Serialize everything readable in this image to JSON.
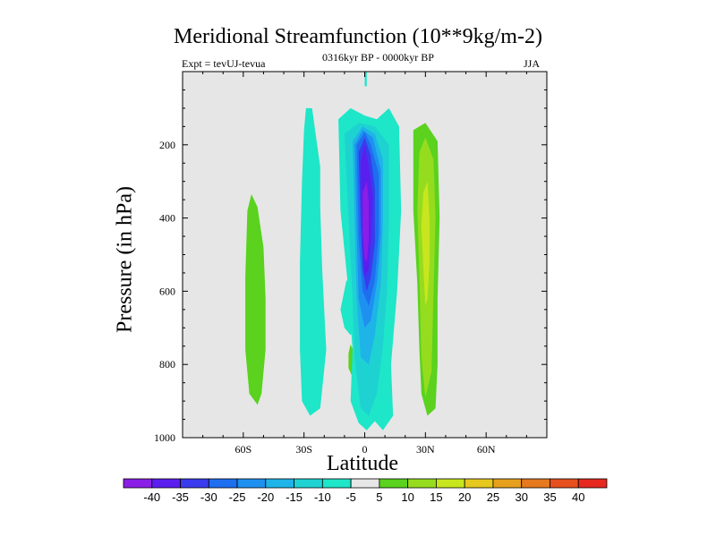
{
  "chart_data": {
    "type": "contour",
    "title": "Meridional Streamfunction (10**9kg/m-2)",
    "subtitle_left": "Expt = tevUJ-tevua",
    "subtitle_center": "0316kyr BP - 0000kyr BP",
    "subtitle_right": "JJA",
    "xlabel": "Latitude",
    "ylabel": "Pressure (in hPa)",
    "xlim": [
      -90,
      90
    ],
    "ylim": [
      1000,
      0
    ],
    "x_ticks": [
      {
        "value": -60,
        "label": "60S"
      },
      {
        "value": -30,
        "label": "30S"
      },
      {
        "value": 0,
        "label": "0"
      },
      {
        "value": 30,
        "label": "30N"
      },
      {
        "value": 60,
        "label": "60N"
      }
    ],
    "y_ticks": [
      {
        "value": 200,
        "label": "200"
      },
      {
        "value": 400,
        "label": "400"
      },
      {
        "value": 600,
        "label": "600"
      },
      {
        "value": 800,
        "label": "800"
      },
      {
        "value": 1000,
        "label": "1000"
      }
    ],
    "background_color": "#e6e6e6",
    "colorbar": {
      "levels": [
        "-40",
        "-35",
        "-30",
        "-25",
        "-20",
        "-15",
        "-10",
        "-5",
        "5",
        "10",
        "15",
        "20",
        "25",
        "30",
        "35",
        "40"
      ],
      "colors": [
        "#8a1ee6",
        "#5a1eee",
        "#3a3aee",
        "#1e6ef0",
        "#1e90f0",
        "#1eb4e8",
        "#1ed2d2",
        "#1ee6c8",
        "#e6e6e6",
        "#5ad21e",
        "#96dc1e",
        "#c8e61e",
        "#e6c81e",
        "#e6a01e",
        "#e6781e",
        "#e6501e",
        "#e6281e"
      ]
    },
    "regions": [
      {
        "name": "green-cell-60S",
        "level": 5,
        "color": "#5ad21e",
        "points": [
          [
            -56,
            335
          ],
          [
            -53,
            370
          ],
          [
            -50,
            480
          ],
          [
            -49,
            620
          ],
          [
            -49,
            760
          ],
          [
            -51,
            880
          ],
          [
            -53,
            910
          ],
          [
            -57,
            880
          ],
          [
            -59,
            760
          ],
          [
            -59,
            560
          ],
          [
            -58,
            380
          ]
        ]
      },
      {
        "name": "teal-cell-30S",
        "level": -5,
        "color": "#1ee6c8",
        "points": [
          [
            -29,
            100
          ],
          [
            -26,
            100
          ],
          [
            -24,
            180
          ],
          [
            -22,
            260
          ],
          [
            -22,
            370
          ],
          [
            -21,
            540
          ],
          [
            -19,
            760
          ],
          [
            -22,
            920
          ],
          [
            -27,
            940
          ],
          [
            -31,
            900
          ],
          [
            -32,
            760
          ],
          [
            -32,
            520
          ],
          [
            -31,
            300
          ],
          [
            -30,
            160
          ]
        ]
      },
      {
        "name": "teal-tongue-10S",
        "level": -5,
        "color": "#1ee6c8",
        "points": [
          [
            -9,
            570
          ],
          [
            -7,
            580
          ],
          [
            -5,
            620
          ],
          [
            -4,
            700
          ],
          [
            -7,
            720
          ],
          [
            -10,
            700
          ],
          [
            -12,
            650
          ]
        ]
      },
      {
        "name": "green-blob-8S",
        "level": 5,
        "color": "#5ad21e",
        "points": [
          [
            -7,
            745
          ],
          [
            -5,
            770
          ],
          [
            -5,
            810
          ],
          [
            -6,
            835
          ],
          [
            -8,
            810
          ],
          [
            -8,
            770
          ]
        ]
      },
      {
        "name": "teal-top-0",
        "level": -5,
        "color": "#1ee6c8",
        "points": [
          [
            0,
            0
          ],
          [
            1,
            0
          ],
          [
            1,
            40
          ],
          [
            0,
            40
          ]
        ]
      },
      {
        "name": "teal-core",
        "level": -5,
        "color": "#1ee6c8",
        "points": [
          [
            -13,
            130
          ],
          [
            -7,
            100
          ],
          [
            0,
            120
          ],
          [
            6,
            130
          ],
          [
            12,
            100
          ],
          [
            17,
            150
          ],
          [
            18,
            380
          ],
          [
            16,
            600
          ],
          [
            13,
            800
          ],
          [
            14,
            940
          ],
          [
            9,
            980
          ],
          [
            5,
            955
          ],
          [
            1,
            980
          ],
          [
            -3,
            960
          ],
          [
            -7,
            900
          ],
          [
            -6,
            760
          ],
          [
            -8,
            600
          ],
          [
            -12,
            380
          ]
        ]
      },
      {
        "name": "cyan-core",
        "level": -10,
        "color": "#1ed2d2",
        "points": [
          [
            -10,
            170
          ],
          [
            -3,
            140
          ],
          [
            5,
            150
          ],
          [
            12,
            200
          ],
          [
            12,
            400
          ],
          [
            11,
            600
          ],
          [
            9,
            750
          ],
          [
            6,
            880
          ],
          [
            2,
            940
          ],
          [
            -2,
            920
          ],
          [
            -5,
            780
          ],
          [
            -6,
            620
          ],
          [
            -8,
            400
          ]
        ]
      },
      {
        "name": "sky-core",
        "level": -15,
        "color": "#1eb4e8",
        "points": [
          [
            -6,
            190
          ],
          [
            -1,
            150
          ],
          [
            5,
            170
          ],
          [
            9,
            240
          ],
          [
            9,
            420
          ],
          [
            8,
            580
          ],
          [
            5,
            720
          ],
          [
            2,
            800
          ],
          [
            -2,
            780
          ],
          [
            -4,
            620
          ],
          [
            -5,
            420
          ]
        ]
      },
      {
        "name": "blue1-core",
        "level": -20,
        "color": "#1e90f0",
        "points": [
          [
            -5,
            200
          ],
          [
            -1,
            160
          ],
          [
            4,
            180
          ],
          [
            8,
            270
          ],
          [
            8,
            450
          ],
          [
            6,
            580
          ],
          [
            3,
            680
          ],
          [
            0,
            700
          ],
          [
            -3,
            620
          ],
          [
            -4,
            430
          ]
        ]
      },
      {
        "name": "blue2-core",
        "level": -25,
        "color": "#1e6ef0",
        "points": [
          [
            -4,
            200
          ],
          [
            0,
            165
          ],
          [
            3,
            200
          ],
          [
            7,
            280
          ],
          [
            7,
            440
          ],
          [
            5,
            570
          ],
          [
            2,
            640
          ],
          [
            -1,
            600
          ],
          [
            -3,
            450
          ]
        ]
      },
      {
        "name": "blue3-core",
        "level": -30,
        "color": "#3a3aee",
        "points": [
          [
            -3,
            220
          ],
          [
            0,
            180
          ],
          [
            3,
            230
          ],
          [
            5,
            320
          ],
          [
            5,
            470
          ],
          [
            3,
            560
          ],
          [
            1,
            600
          ],
          [
            -1,
            540
          ],
          [
            -2,
            420
          ]
        ]
      },
      {
        "name": "indigo-core",
        "level": -35,
        "color": "#5a1eee",
        "points": [
          [
            -2,
            250
          ],
          [
            0,
            200
          ],
          [
            2,
            260
          ],
          [
            4,
            340
          ],
          [
            3,
            470
          ],
          [
            2,
            540
          ],
          [
            0,
            560
          ],
          [
            -1,
            480
          ]
        ]
      },
      {
        "name": "violet-core",
        "level": -40,
        "color": "#8a1ee6",
        "points": [
          [
            -1,
            330
          ],
          [
            1,
            300
          ],
          [
            2,
            360
          ],
          [
            2,
            460
          ],
          [
            1,
            520
          ],
          [
            0,
            510
          ],
          [
            -1,
            440
          ]
        ]
      },
      {
        "name": "green-cell-30N",
        "level": 5,
        "color": "#5ad21e",
        "points": [
          [
            24,
            160
          ],
          [
            30,
            140
          ],
          [
            36,
            190
          ],
          [
            37,
            400
          ],
          [
            36,
            620
          ],
          [
            36,
            800
          ],
          [
            35,
            920
          ],
          [
            31,
            940
          ],
          [
            28,
            880
          ],
          [
            27,
            760
          ],
          [
            26,
            580
          ],
          [
            24,
            380
          ]
        ]
      },
      {
        "name": "lime-cell-30N",
        "level": 10,
        "color": "#96dc1e",
        "points": [
          [
            27,
            220
          ],
          [
            30,
            180
          ],
          [
            34,
            240
          ],
          [
            35,
            400
          ],
          [
            34,
            600
          ],
          [
            33,
            820
          ],
          [
            30,
            890
          ],
          [
            28,
            780
          ],
          [
            27,
            560
          ],
          [
            26,
            380
          ]
        ]
      },
      {
        "name": "yellow-cell-30N",
        "level": 15,
        "color": "#c8e61e",
        "points": [
          [
            29,
            330
          ],
          [
            31,
            300
          ],
          [
            32,
            400
          ],
          [
            32,
            520
          ],
          [
            31,
            620
          ],
          [
            30,
            640
          ],
          [
            29,
            540
          ],
          [
            28,
            420
          ]
        ]
      }
    ]
  }
}
